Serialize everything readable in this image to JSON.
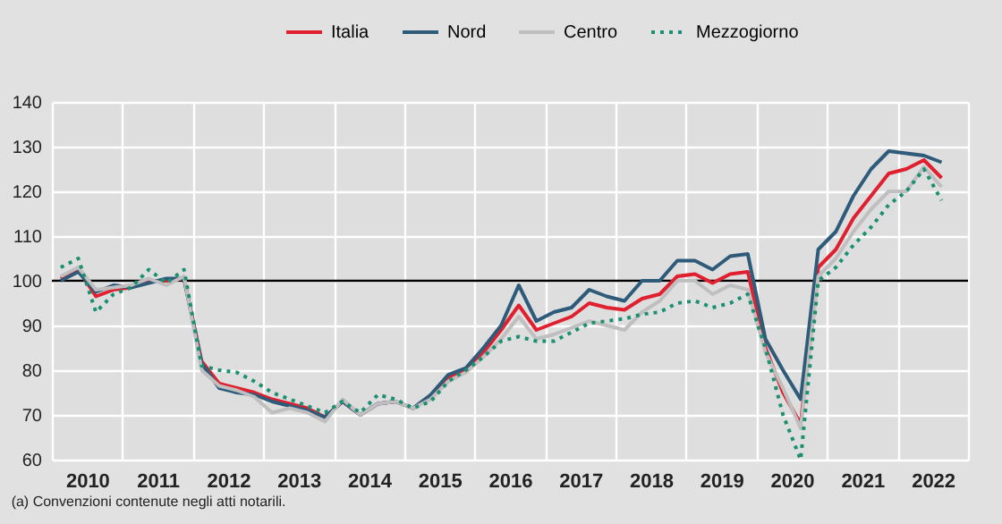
{
  "chart_data": {
    "type": "line",
    "x": [
      2010.125,
      2010.375,
      2010.625,
      2010.875,
      2011.125,
      2011.375,
      2011.625,
      2011.875,
      2012.125,
      2012.375,
      2012.625,
      2012.875,
      2013.125,
      2013.375,
      2013.625,
      2013.875,
      2014.125,
      2014.375,
      2014.625,
      2014.875,
      2015.125,
      2015.375,
      2015.625,
      2015.875,
      2016.125,
      2016.375,
      2016.625,
      2016.875,
      2017.125,
      2017.375,
      2017.625,
      2017.875,
      2018.125,
      2018.375,
      2018.625,
      2018.875,
      2019.125,
      2019.375,
      2019.625,
      2019.875,
      2020.125,
      2020.375,
      2020.625,
      2020.875,
      2021.125,
      2021.375,
      2021.625,
      2021.875,
      2022.125,
      2022.375,
      2022.625
    ],
    "series": [
      {
        "name": "Italia",
        "color": "#e0202f",
        "values": [
          100.5,
          102.5,
          96.5,
          98,
          98.5,
          100,
          100,
          100.5,
          82,
          77,
          76,
          75,
          73.5,
          72.5,
          71.5,
          69.5,
          73,
          70,
          72.5,
          73,
          71.5,
          74,
          78.5,
          80,
          84,
          89,
          94.5,
          89,
          90.5,
          92,
          95,
          94,
          93.5,
          96,
          97,
          101,
          101.5,
          99.5,
          101.5,
          102,
          85,
          75,
          68,
          103,
          107,
          114,
          119,
          124,
          125,
          127,
          123
        ]
      },
      {
        "name": "Nord",
        "color": "#2e5b7a",
        "values": [
          100,
          102,
          97.5,
          99,
          98.5,
          99.5,
          100.5,
          100.5,
          81.5,
          76,
          75,
          74.5,
          73,
          72,
          71,
          69.5,
          73,
          70,
          72.5,
          73,
          71.5,
          74.5,
          79,
          80.5,
          85,
          90,
          99,
          91,
          93,
          94,
          98,
          96.5,
          95.5,
          100,
          100,
          104.5,
          104.5,
          102.5,
          105.5,
          106,
          87,
          80,
          73.5,
          107,
          111,
          119,
          125,
          129,
          128.5,
          128,
          126.5
        ]
      },
      {
        "name": "Centro",
        "color": "#bfbfbf",
        "values": [
          101,
          103,
          98,
          98.5,
          99,
          100.5,
          99,
          101,
          80,
          76.5,
          75.5,
          74,
          70.5,
          71.5,
          70.5,
          68.5,
          73.5,
          70,
          72.5,
          73,
          71.5,
          73.5,
          77.5,
          79.5,
          83,
          87,
          92,
          87,
          88,
          89.5,
          91,
          90,
          89,
          93,
          95.5,
          100,
          100,
          97,
          99,
          98,
          84,
          76,
          67,
          101,
          105,
          111,
          116,
          120,
          120,
          125.5,
          121
        ]
      },
      {
        "name": "Mezzogiorno",
        "color": "#1a9070",
        "line_style": "dotted",
        "values": [
          103,
          105,
          93,
          97,
          98.5,
          102.5,
          99.5,
          102.5,
          81,
          80,
          79.5,
          77.5,
          75,
          73.5,
          72,
          70.5,
          73,
          70.5,
          74.5,
          73.5,
          71.5,
          73,
          77.5,
          80,
          83,
          86.5,
          87.5,
          86.5,
          86.5,
          88.5,
          90.5,
          91,
          91.5,
          92.5,
          93,
          95,
          95.5,
          94,
          95,
          97,
          85,
          70,
          60,
          100,
          103,
          108,
          112,
          117,
          120,
          125,
          118
        ]
      }
    ],
    "xlim": [
      2010,
      2023
    ],
    "xticks": [
      {
        "value": 2010,
        "label": null
      },
      {
        "value": 2011,
        "label": null
      },
      {
        "value": 2012,
        "label": null
      },
      {
        "value": 2013,
        "label": null
      },
      {
        "value": 2014,
        "label": null
      },
      {
        "value": 2015,
        "label": null
      },
      {
        "value": 2016,
        "label": null
      },
      {
        "value": 2017,
        "label": null
      },
      {
        "value": 2018,
        "label": null
      },
      {
        "value": 2019,
        "label": null
      },
      {
        "value": 2020,
        "label": null
      },
      {
        "value": 2021,
        "label": null
      },
      {
        "value": 2022,
        "label": null
      },
      {
        "value": 2023,
        "label": null
      },
      {
        "value": 2010.5,
        "label": "2010"
      },
      {
        "value": 2011.5,
        "label": "2011"
      },
      {
        "value": 2012.5,
        "label": "2012"
      },
      {
        "value": 2013.5,
        "label": "2013"
      },
      {
        "value": 2014.5,
        "label": "2014"
      },
      {
        "value": 2015.5,
        "label": "2015"
      },
      {
        "value": 2016.5,
        "label": "2016"
      },
      {
        "value": 2017.5,
        "label": "2017"
      },
      {
        "value": 2018.5,
        "label": "2018"
      },
      {
        "value": 2019.5,
        "label": "2019"
      },
      {
        "value": 2020.5,
        "label": "2020"
      },
      {
        "value": 2021.5,
        "label": "2021"
      },
      {
        "value": 2022.5,
        "label": "2022"
      }
    ],
    "ylim": [
      60,
      140
    ],
    "yticks": [
      60,
      70,
      80,
      90,
      100,
      110,
      120,
      130,
      140
    ],
    "ref_lines": [
      {
        "axis": "y",
        "value": 100,
        "color": "#000000"
      }
    ],
    "grid": true,
    "legend": "top",
    "marker": "none",
    "annotations": [
      "(a) Convenzioni contenute negli atti notarili."
    ]
  }
}
